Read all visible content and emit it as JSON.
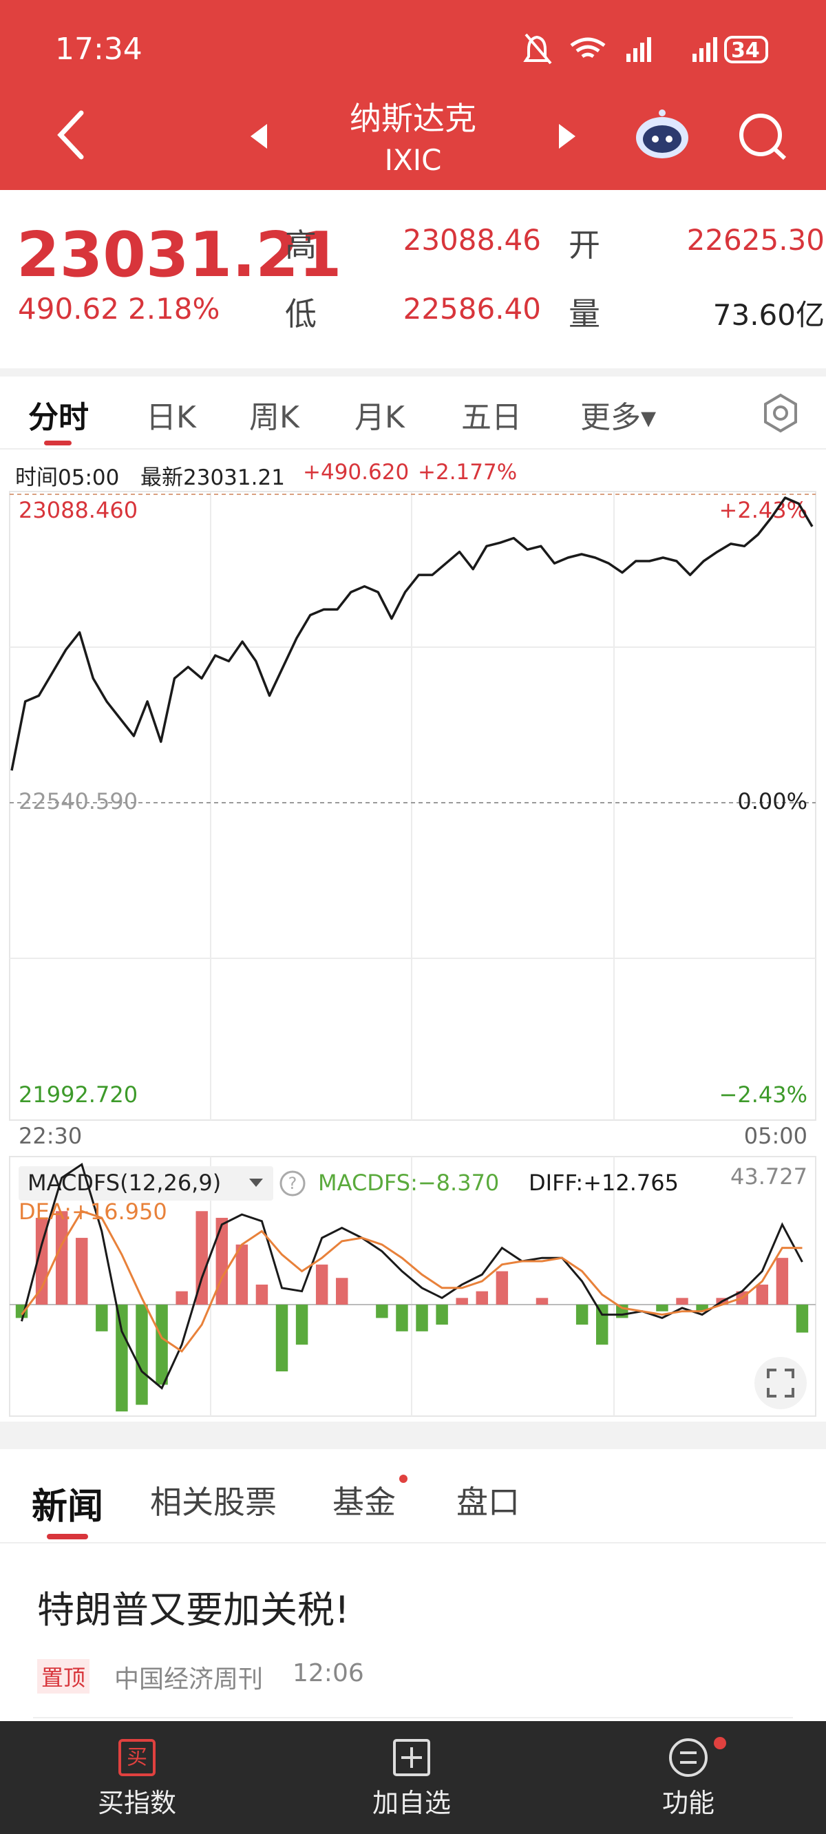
{
  "status_bar": {
    "time": "17:34",
    "battery": "34"
  },
  "header": {
    "title": "纳斯达克",
    "code": "IXIC"
  },
  "quote": {
    "price": "23031.21",
    "change": "490.62",
    "change_pct": "2.18%",
    "high_label": "高",
    "high": "23088.46",
    "low_label": "低",
    "low": "22586.40",
    "open_label": "开",
    "open": "22625.30",
    "volume_label": "量",
    "volume": "73.60亿"
  },
  "tabs": [
    "分时",
    "日K",
    "周K",
    "月K",
    "五日",
    "更多▾"
  ],
  "info_bar": {
    "time": "时间05:00",
    "latest": "最新23031.21",
    "change": "+490.620",
    "change_pct": "+2.177%"
  },
  "chart_data": [
    {
      "type": "line",
      "color": "#1a1a1a",
      "x_labels": [
        "22:30",
        "05:00"
      ],
      "values": [
        22597.8,
        22720.5,
        22730.7,
        22771.6,
        22812.5,
        22843.1,
        22761.4,
        22720.5,
        22689.8,
        22659.2,
        22720.5,
        22648.9,
        22761.4,
        22781.8,
        22761.4,
        22802.2,
        22792.0,
        22826.8,
        22792.0,
        22730.7,
        22781.8,
        22832.9,
        22873.8,
        22884.0,
        22884.0,
        22914.7,
        22924.9,
        22914.7,
        22867.6,
        22914.7,
        22945.3,
        22945.3,
        22965.8,
        22986.2,
        22955.5,
        22996.4,
        23002.5,
        23010.7,
        22990.3,
        22996.4,
        22965.8,
        22976.0,
        22982.1,
        22976.0,
        22965.8,
        22949.4,
        22969.8,
        22969.8,
        22976.0,
        22969.8,
        22945.3,
        22969.8,
        22986.2,
        23000.5,
        22996.4,
        23016.9,
        23047.5,
        23082.3,
        23072.0,
        23031.21
      ],
      "ylim": [
        21992.72,
        23088.46
      ],
      "yticks": [
        {
          "value": 23088.46,
          "label": "23088.460"
        },
        {
          "value": 22540.59,
          "label": "22540.590"
        },
        {
          "value": 21992.72,
          "label": "21992.720"
        }
      ],
      "y2lim": [
        -2.43,
        2.43
      ],
      "y2ticks": [
        {
          "value": 2.43,
          "label": "+2.43%"
        },
        {
          "value": 0,
          "label": "0.00%"
        },
        {
          "value": -2.43,
          "label": "−2.43%"
        }
      ]
    },
    {
      "type": "macd",
      "title": "MACDFS(12,26,9)",
      "ylim": [
        -33.4,
        43.727
      ],
      "yticks": [
        43.727
      ],
      "series": [
        {
          "type": "bar",
          "label": "MACDFS:−8.370",
          "color": "#e26a6a",
          "negative_color": "#5aaa3c",
          "values": [
            -4,
            26,
            28,
            20,
            -8,
            -32,
            -30,
            -24,
            4,
            28,
            26,
            18,
            6,
            -20,
            -12,
            12,
            8,
            0,
            -4,
            -8,
            -8,
            -6,
            2,
            4,
            10,
            0,
            2,
            0,
            -6,
            -12,
            -4,
            0,
            -2,
            2,
            -2,
            2,
            4,
            6,
            14,
            -8.37
          ]
        },
        {
          "type": "line",
          "label": "DIFF:+12.765",
          "color": "#1a1a1a",
          "values": [
            -5,
            18,
            38,
            42,
            22,
            -8,
            -20,
            -25,
            -12,
            8,
            24,
            27,
            25,
            5,
            4,
            20,
            23,
            20,
            16,
            10,
            5,
            2,
            6,
            9,
            17,
            13,
            14,
            14,
            7,
            -3,
            -3,
            -2,
            -4,
            -1,
            -3,
            1,
            4,
            10,
            24,
            12.765
          ]
        },
        {
          "type": "line",
          "label": "DEA:+16.950",
          "color": "#e8813a",
          "values": [
            -3,
            5,
            18,
            28,
            26,
            15,
            2,
            -10,
            -14,
            -6,
            8,
            18,
            22,
            15,
            10,
            14,
            19,
            20,
            18,
            14,
            9,
            5,
            5,
            7,
            12,
            13,
            13,
            14,
            10,
            3,
            -1,
            -2,
            -3,
            -2,
            -2,
            0,
            2,
            7,
            17,
            16.95
          ]
        }
      ]
    }
  ],
  "news_tabs": [
    "新闻",
    "相关股票",
    "基金",
    "盘口"
  ],
  "news": [
    {
      "title": "特朗普又要加关税!",
      "tag": "置顶",
      "source": "中国经济周刊",
      "time": "12:06"
    }
  ],
  "nav": [
    "买指数",
    "加自选",
    "功能"
  ]
}
